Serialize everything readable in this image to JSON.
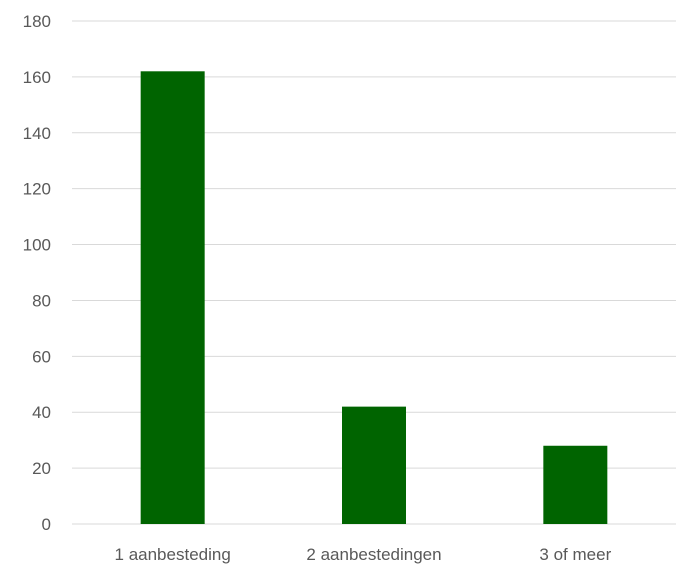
{
  "chart_data": {
    "type": "bar",
    "title": "",
    "xlabel": "",
    "ylabel": "",
    "categories": [
      "1 aanbesteding",
      "2 aanbestedingen",
      "3 of meer"
    ],
    "values": [
      162,
      42,
      28
    ],
    "ylim": [
      0,
      180
    ],
    "yticks": [
      0,
      20,
      40,
      60,
      80,
      100,
      120,
      140,
      160,
      180
    ],
    "grid": true,
    "legend": "none",
    "bar_color": "#006400",
    "grid_color": "#d9d9d9",
    "label_color": "#595959"
  }
}
